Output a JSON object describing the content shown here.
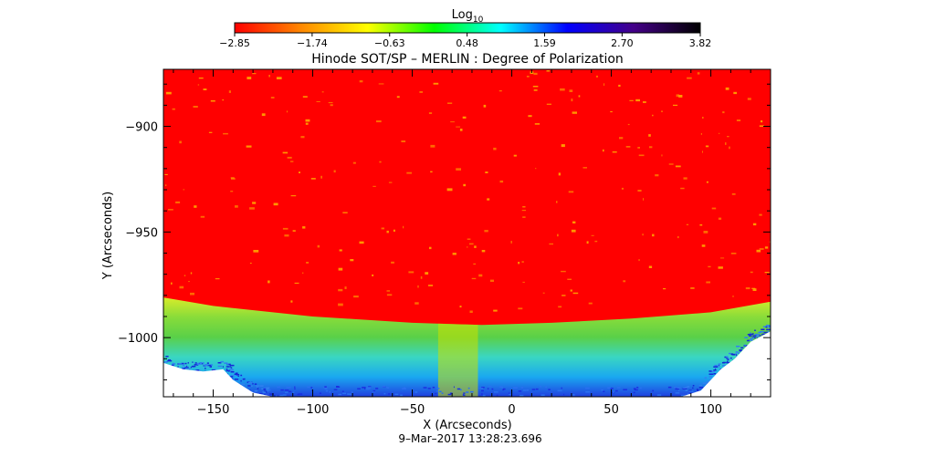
{
  "chart_data": {
    "type": "heatmap",
    "title": "Hinode SOT/SP – MERLIN : Degree of Polarization",
    "xlabel": "X (Arcseconds)",
    "ylabel": "Y (Arcseconds)",
    "timestamp": "9–Mar–2017 13:28:23.696",
    "xlim": [
      -175,
      130
    ],
    "ylim": [
      -1028,
      -873
    ],
    "x_ticks": [
      -150,
      -100,
      -50,
      0,
      50,
      100
    ],
    "x_tick_labels": [
      "−150",
      "−100",
      "−50",
      "0",
      "50",
      "100"
    ],
    "y_ticks": [
      -900,
      -950,
      -1000
    ],
    "y_tick_labels": [
      "−900",
      "−950",
      "−1000"
    ],
    "colorbar": {
      "label_main": "Log",
      "label_sub": "10",
      "ticks": [
        -2.85,
        -1.74,
        -0.63,
        0.48,
        1.59,
        2.7,
        3.82
      ],
      "tick_labels": [
        "−2.85",
        "−1.74",
        "−0.63",
        "0.48",
        "1.59",
        "2.70",
        "3.82"
      ],
      "colors": [
        "#ff0000",
        "#ff8800",
        "#ffff00",
        "#00ff00",
        "#00ffff",
        "#0000ff",
        "#440088",
        "#000000"
      ]
    },
    "disk_value": -2.85,
    "limb": {
      "x_at_y": [
        [
          -175,
          -981
        ],
        [
          -150,
          -985
        ],
        [
          -100,
          -990
        ],
        [
          -50,
          -993
        ],
        [
          -15,
          -994
        ],
        [
          20,
          -993
        ],
        [
          60,
          -991
        ],
        [
          100,
          -988
        ],
        [
          130,
          -983
        ]
      ]
    },
    "off_limb_colors": [
      "#d8ec2a",
      "#88dc3a",
      "#5ad048",
      "#3ad6c2",
      "#1aa8f0",
      "#2040e0"
    ],
    "gap_edge": {
      "x_at_y": [
        [
          -175,
          -1012
        ],
        [
          -165,
          -1015
        ],
        [
          -155,
          -1016
        ],
        [
          -145,
          -1015
        ],
        [
          -140,
          -1020
        ],
        [
          -130,
          -1026
        ],
        [
          -120,
          -1028
        ],
        [
          85,
          -1028
        ],
        [
          95,
          -1025
        ],
        [
          105,
          -1015
        ],
        [
          112,
          -1010
        ],
        [
          120,
          -1002
        ],
        [
          130,
          -997
        ]
      ]
    },
    "bright_column": {
      "x0": -37,
      "x1": -17,
      "color": "#c8e000"
    }
  }
}
